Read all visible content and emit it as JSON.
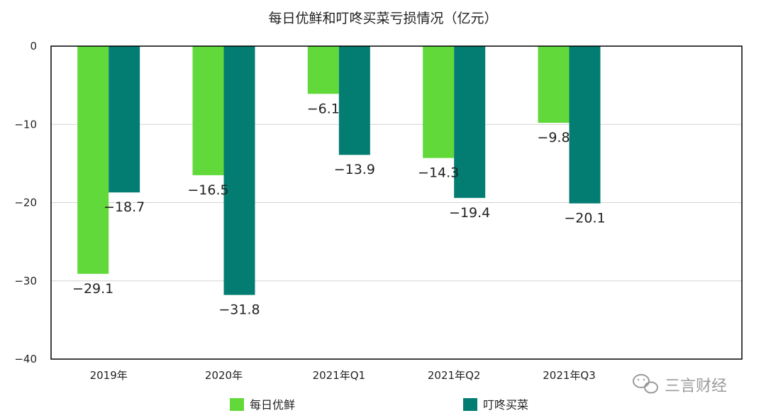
{
  "chart_data": {
    "type": "bar",
    "title": "每日优鲜和叮咚买菜亏损情况（亿元）",
    "categories": [
      "2019年",
      "2020年",
      "2021年Q1",
      "2021年Q2",
      "2021年Q3"
    ],
    "series": [
      {
        "name": "每日优鲜",
        "color": "#62d93b",
        "values": [
          -29.1,
          -16.5,
          -6.1,
          -14.3,
          -9.8
        ]
      },
      {
        "name": "叮咚买菜",
        "color": "#037d72",
        "values": [
          -18.7,
          -31.8,
          -13.9,
          -19.4,
          -20.1
        ]
      }
    ],
    "ylim": [
      -40,
      0
    ],
    "yticks": [
      0,
      -10,
      -20,
      -30,
      -40
    ],
    "grid": true,
    "legend_placement": "bottom"
  },
  "watermark": {
    "text": "三言财经",
    "icon": "wechat-icon"
  }
}
